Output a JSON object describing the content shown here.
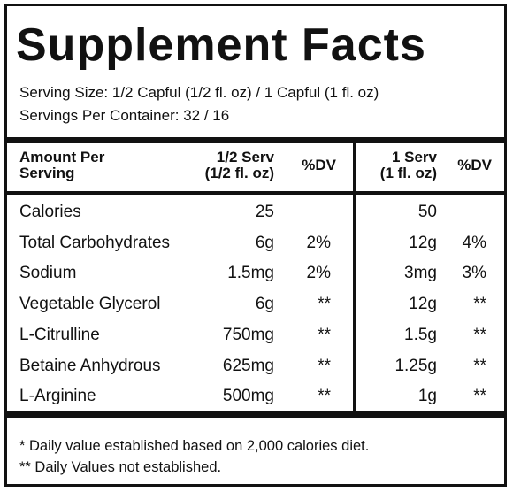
{
  "title": "Supplement Facts",
  "serving": [
    "Serving Size: 1/2 Capful (1/2 fl. oz) / 1 Capful (1 fl. oz)",
    "Servings Per Container: 32 / 16"
  ],
  "table": {
    "header": [
      [
        "Amount Per",
        "Serving"
      ],
      [
        "1/2 Serv",
        "(1/2 fl. oz)"
      ],
      [
        "%DV"
      ],
      [
        "1 Serv",
        "(1 fl. oz)"
      ],
      [
        "%DV"
      ]
    ],
    "rows": [
      [
        "Calories",
        "25",
        null,
        "50",
        null
      ],
      [
        "Total Carbohydrates",
        "6g",
        "2%",
        "12g",
        "4%"
      ],
      [
        "Sodium",
        "1.5mg",
        "2%",
        "3mg",
        "3%"
      ],
      [
        "Vegetable Glycerol",
        "6g",
        "**",
        "12g",
        "**"
      ],
      [
        "L-Citrulline",
        "750mg",
        "**",
        "1.5g",
        "**"
      ],
      [
        "Betaine Anhydrous",
        "625mg",
        "**",
        "1.25g",
        "**"
      ],
      [
        "L-Arginine",
        "500mg",
        "**",
        "1g",
        "**"
      ]
    ]
  },
  "footnotes": [
    "* Daily value established based on 2,000 calories diet.",
    "** Daily Values not established."
  ]
}
